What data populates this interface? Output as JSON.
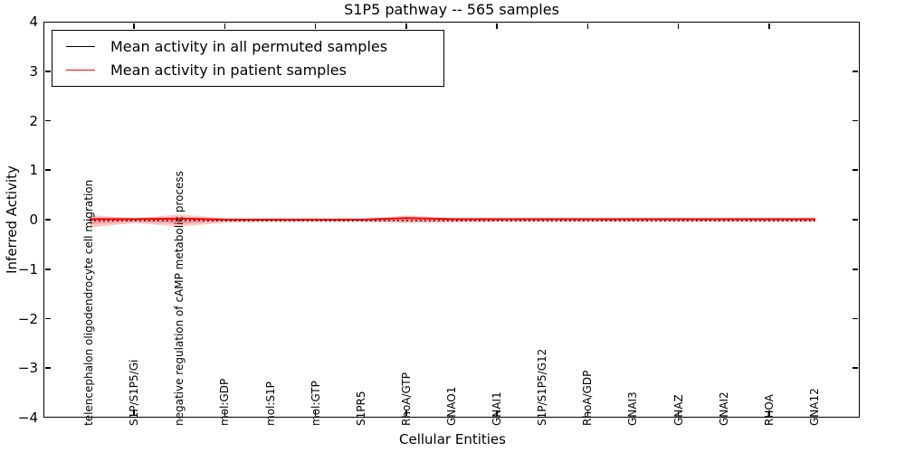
{
  "title": "S1P5 pathway -- 565 samples",
  "legend": {
    "items": [
      {
        "label": "Mean activity in all permuted samples",
        "color": "#000000"
      },
      {
        "label": "Mean activity in patient samples",
        "color": "#ff0000"
      }
    ]
  },
  "chart_data": {
    "type": "line",
    "title": "S1P5 pathway -- 565 samples",
    "xlabel": "Cellular Entities",
    "ylabel": "Inferred Activity",
    "ylim": [
      -4,
      4
    ],
    "grid": false,
    "legend_position": "upper left",
    "yticks": {
      "values": [
        4,
        3,
        2,
        1,
        0,
        -1,
        -2,
        -3,
        -4
      ],
      "labels": [
        "4",
        "3",
        "2",
        "1",
        "0",
        "−1",
        "−2",
        "−3",
        "−4"
      ]
    },
    "xtick_mark_indices": [
      1,
      3,
      5,
      7,
      9,
      11,
      13,
      15
    ],
    "categories": [
      "telencephalon oligodendrocyte cell migration",
      "S1P/S1P5/Gi",
      "negative regulation of cAMP metabolic process",
      "mol:GDP",
      "mol:S1P",
      "mol:GTP",
      "S1PR5",
      "RhoA/GTP",
      "GNAO1",
      "GNAI1",
      "S1P/S1P5/G12",
      "RhoA/GDP",
      "GNAI3",
      "GNAZ",
      "GNAI2",
      "RHOA",
      "GNA12"
    ],
    "series": [
      {
        "name": "Mean activity in all permuted samples",
        "color": "#000000",
        "style": "dotted",
        "values": [
          0,
          0,
          0,
          0,
          0,
          0,
          0,
          0,
          0,
          0,
          0,
          0,
          0,
          0,
          0,
          0,
          0
        ]
      },
      {
        "name": "Mean activity in patient samples",
        "color": "#ff0000",
        "style": "solid",
        "values": [
          0.03,
          0.03,
          0.04,
          0.02,
          0.02,
          0.02,
          0.02,
          0.05,
          0.03,
          0.03,
          0.03,
          0.03,
          0.03,
          0.03,
          0.03,
          0.03,
          0.03
        ]
      }
    ],
    "band": {
      "name": "patient samples std band",
      "color": "#ff0000",
      "opacity": 0.22,
      "upper": [
        0.11,
        0.05,
        0.12,
        0.04,
        0.03,
        0.03,
        0.03,
        0.1,
        0.05,
        0.03,
        0.03,
        0.03,
        0.03,
        0.03,
        0.03,
        0.03,
        0.03
      ],
      "lower": [
        -0.14,
        -0.05,
        -0.12,
        -0.04,
        -0.03,
        -0.03,
        -0.03,
        -0.05,
        -0.04,
        -0.03,
        -0.03,
        -0.03,
        -0.03,
        -0.03,
        -0.03,
        -0.03,
        -0.03
      ]
    }
  }
}
